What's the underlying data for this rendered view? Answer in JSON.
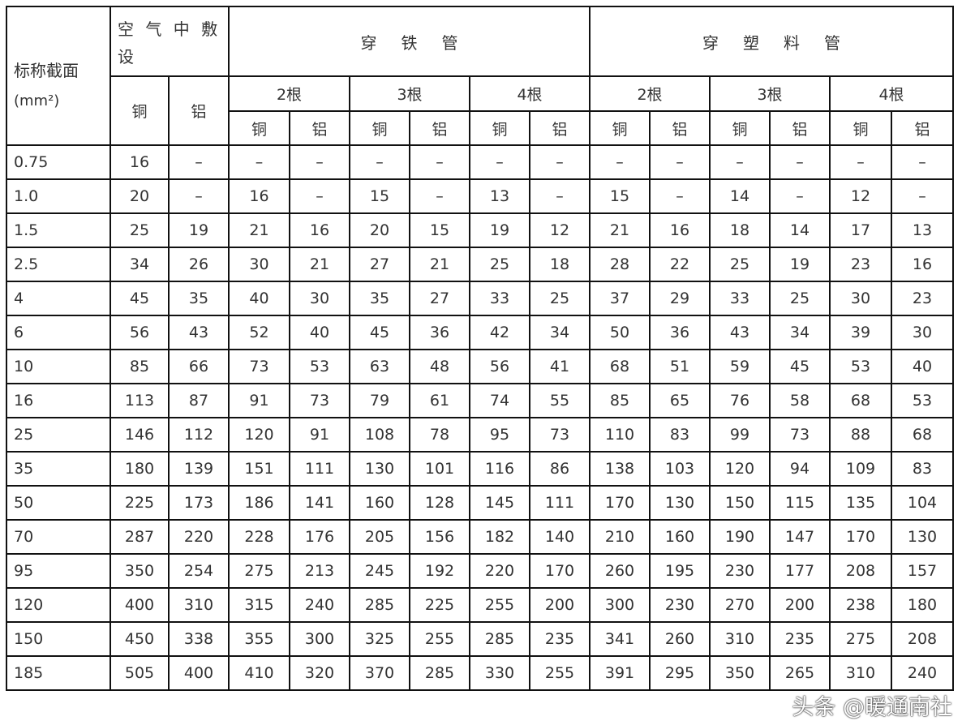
{
  "header": {
    "size_label": "标称截面",
    "size_unit": "(mm²)",
    "air": "空 气 中 敷 设",
    "iron_pipe": "穿铁管",
    "plastic_pipe": "穿塑料管",
    "counts": [
      "2根",
      "3根",
      "4根"
    ],
    "copper": "铜",
    "aluminum": "铝"
  },
  "rows": [
    [
      "0.75",
      "16",
      "–",
      "–",
      "–",
      "–",
      "–",
      "–",
      "–",
      "–",
      "–",
      "–",
      "–",
      "–",
      "–"
    ],
    [
      "1.0",
      "20",
      "–",
      "16",
      "–",
      "15",
      "–",
      "13",
      "–",
      "15",
      "–",
      "14",
      "–",
      "12",
      "–"
    ],
    [
      "1.5",
      "25",
      "19",
      "21",
      "16",
      "20",
      "15",
      "19",
      "12",
      "21",
      "16",
      "18",
      "14",
      "17",
      "13"
    ],
    [
      "2.5",
      "34",
      "26",
      "30",
      "21",
      "27",
      "21",
      "25",
      "18",
      "28",
      "22",
      "25",
      "19",
      "23",
      "16"
    ],
    [
      "4",
      "45",
      "35",
      "40",
      "30",
      "35",
      "27",
      "33",
      "25",
      "37",
      "29",
      "33",
      "25",
      "30",
      "23"
    ],
    [
      "6",
      "56",
      "43",
      "52",
      "40",
      "45",
      "36",
      "42",
      "34",
      "50",
      "36",
      "43",
      "34",
      "39",
      "30"
    ],
    [
      "10",
      "85",
      "66",
      "73",
      "53",
      "63",
      "48",
      "56",
      "41",
      "68",
      "51",
      "59",
      "45",
      "53",
      "40"
    ],
    [
      "16",
      "113",
      "87",
      "91",
      "73",
      "79",
      "61",
      "74",
      "55",
      "85",
      "65",
      "76",
      "58",
      "68",
      "53"
    ],
    [
      "25",
      "146",
      "112",
      "120",
      "91",
      "108",
      "78",
      "95",
      "73",
      "110",
      "83",
      "99",
      "73",
      "88",
      "68"
    ],
    [
      "35",
      "180",
      "139",
      "151",
      "111",
      "130",
      "101",
      "116",
      "86",
      "138",
      "103",
      "120",
      "94",
      "109",
      "83"
    ],
    [
      "50",
      "225",
      "173",
      "186",
      "141",
      "160",
      "128",
      "145",
      "111",
      "170",
      "130",
      "150",
      "115",
      "135",
      "104"
    ],
    [
      "70",
      "287",
      "220",
      "228",
      "176",
      "205",
      "156",
      "182",
      "140",
      "210",
      "160",
      "190",
      "147",
      "170",
      "130"
    ],
    [
      "95",
      "350",
      "254",
      "275",
      "213",
      "245",
      "192",
      "220",
      "170",
      "260",
      "195",
      "230",
      "177",
      "208",
      "157"
    ],
    [
      "120",
      "400",
      "310",
      "315",
      "240",
      "285",
      "225",
      "255",
      "200",
      "300",
      "230",
      "270",
      "200",
      "238",
      "180"
    ],
    [
      "150",
      "450",
      "338",
      "355",
      "300",
      "325",
      "255",
      "285",
      "235",
      "341",
      "260",
      "310",
      "235",
      "275",
      "208"
    ],
    [
      "185",
      "505",
      "400",
      "410",
      "320",
      "370",
      "285",
      "330",
      "255",
      "391",
      "295",
      "350",
      "265",
      "310",
      "240"
    ]
  ],
  "watermark": "头条 @暖通南社"
}
